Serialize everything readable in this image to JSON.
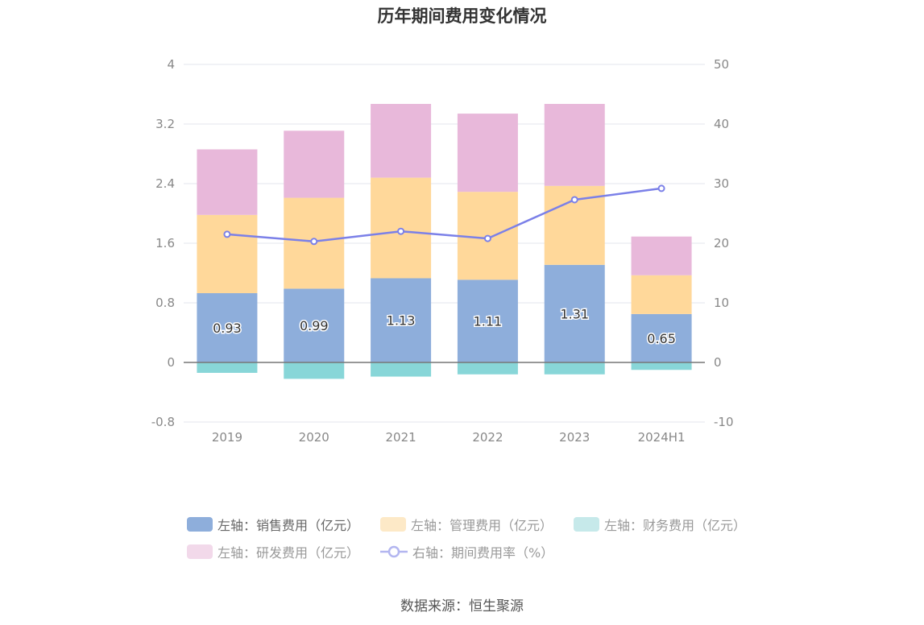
{
  "title": "历年期间费用变化情况",
  "source_text": "数据来源：恒生聚源",
  "chart_data": {
    "type": "bar",
    "stacked": true,
    "categories": [
      "2019",
      "2020",
      "2021",
      "2022",
      "2023",
      "2024H1"
    ],
    "series": [
      {
        "name": "左轴：销售费用（亿元）",
        "axis": "left",
        "color": "#8eaedb",
        "values": [
          0.93,
          0.99,
          1.13,
          1.11,
          1.31,
          0.65
        ],
        "data_labels": [
          "0.93",
          "0.99",
          "1.13",
          "1.11",
          "1.31",
          "0.65"
        ]
      },
      {
        "name": "左轴：管理费用（亿元）",
        "axis": "left",
        "color": "#ffd89a",
        "values": [
          1.05,
          1.22,
          1.35,
          1.18,
          1.06,
          0.52
        ]
      },
      {
        "name": "左轴：财务费用（亿元）",
        "axis": "left",
        "color": "#88d6d8",
        "values": [
          -0.14,
          -0.22,
          -0.19,
          -0.16,
          -0.16,
          -0.1
        ]
      },
      {
        "name": "左轴：研发费用（亿元）",
        "axis": "left",
        "color": "#e8b8da",
        "values": [
          0.88,
          0.9,
          0.99,
          1.05,
          1.1,
          0.52
        ]
      },
      {
        "name": "右轴：期间费用率（%）",
        "axis": "right",
        "type": "line",
        "color": "#7b80e8",
        "values": [
          21.5,
          20.3,
          22.0,
          20.8,
          27.3,
          29.2
        ]
      }
    ],
    "left_axis": {
      "ylim": [
        -0.8,
        4
      ],
      "ticks": [
        "4",
        "3.2",
        "2.4",
        "1.6",
        "0.8",
        "0",
        "-0.8"
      ],
      "tick_values": [
        4,
        3.2,
        2.4,
        1.6,
        0.8,
        0,
        -0.8
      ]
    },
    "right_axis": {
      "ylim": [
        -10,
        50
      ],
      "ticks": [
        "50",
        "40",
        "30",
        "20",
        "10",
        "0",
        "-10"
      ],
      "tick_values": [
        50,
        40,
        30,
        20,
        10,
        0,
        -10
      ]
    },
    "grid": true,
    "legend_position": "bottom"
  },
  "legend": [
    {
      "label": "左轴：销售费用（亿元）",
      "color": "#8eaedb",
      "kind": "bar",
      "active": true
    },
    {
      "label": "左轴：管理费用（亿元）",
      "color": "#fde9c7",
      "kind": "bar",
      "active": false
    },
    {
      "label": "左轴：财务费用（亿元）",
      "color": "#c6e9ea",
      "kind": "bar",
      "active": false
    },
    {
      "label": "左轴：研发费用（亿元）",
      "color": "#f2d9ea",
      "kind": "bar",
      "active": false
    },
    {
      "label": "右轴：期间费用率（%）",
      "color": "#b3b6f0",
      "kind": "line",
      "active": false
    }
  ]
}
